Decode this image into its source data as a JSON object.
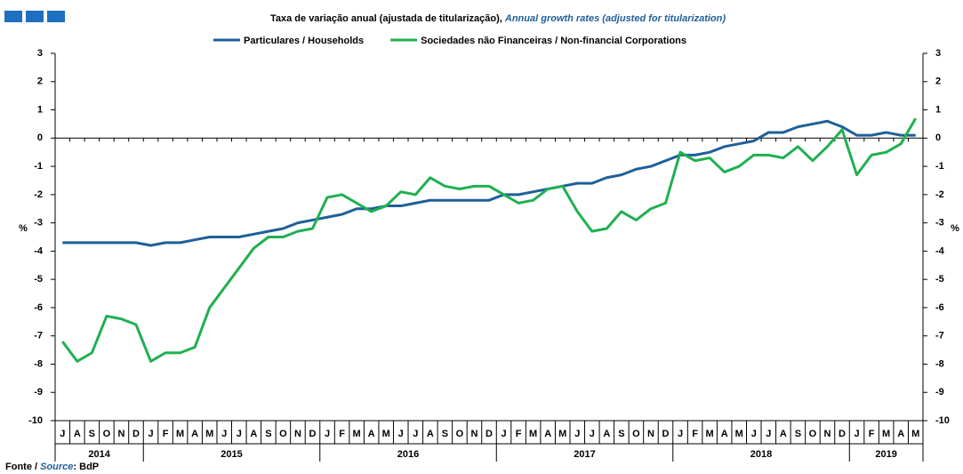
{
  "chart_data": {
    "type": "line",
    "title": "Taxa de variação anual (ajustada de titularização),",
    "subtitle": "Annual growth rates (adjusted for titularization)",
    "y_label": "%",
    "categories": [
      "J",
      "A",
      "S",
      "O",
      "N",
      "D",
      "J",
      "F",
      "M",
      "A",
      "M",
      "J",
      "J",
      "A",
      "S",
      "O",
      "N",
      "D",
      "J",
      "F",
      "M",
      "A",
      "M",
      "J",
      "J",
      "A",
      "S",
      "O",
      "N",
      "D",
      "J",
      "F",
      "M",
      "A",
      "M",
      "J",
      "J",
      "A",
      "S",
      "O",
      "N",
      "D",
      "J",
      "F",
      "M",
      "A",
      "M",
      "J",
      "J",
      "A",
      "S",
      "O",
      "N",
      "D",
      "J",
      "F",
      "M",
      "A",
      "M"
    ],
    "years": [
      "2014",
      "2015",
      "2016",
      "2017",
      "2018",
      "2019"
    ],
    "series": [
      {
        "name": "Particulares / Households",
        "color": "#1f5f99",
        "values": [
          -3.7,
          -3.7,
          -3.7,
          -3.7,
          -3.7,
          -3.7,
          -3.8,
          -3.7,
          -3.7,
          -3.6,
          -3.5,
          -3.5,
          -3.5,
          -3.4,
          -3.3,
          -3.2,
          -3.0,
          -2.9,
          -2.8,
          -2.7,
          -2.5,
          -2.5,
          -2.4,
          -2.4,
          -2.3,
          -2.2,
          -2.2,
          -2.2,
          -2.2,
          -2.2,
          -2.0,
          -2.0,
          -1.9,
          -1.8,
          -1.7,
          -1.6,
          -1.6,
          -1.4,
          -1.3,
          -1.1,
          -1.0,
          -0.8,
          -0.6,
          -0.6,
          -0.5,
          -0.3,
          -0.2,
          -0.1,
          0.2,
          0.2,
          0.4,
          0.5,
          0.6,
          0.4,
          0.1,
          0.1,
          0.2,
          0.1,
          0.1
        ]
      },
      {
        "name": "Sociedades não Financeiras / Non-financial Corporations",
        "color": "#1fb050",
        "values": [
          -7.2,
          -7.9,
          -7.6,
          -6.3,
          -6.4,
          -6.6,
          -7.9,
          -7.6,
          -7.6,
          -7.4,
          -6.0,
          -5.3,
          -4.6,
          -3.9,
          -3.5,
          -3.5,
          -3.3,
          -3.2,
          -2.1,
          -2.0,
          -2.3,
          -2.6,
          -2.4,
          -1.9,
          -2.0,
          -1.4,
          -1.7,
          -1.8,
          -1.7,
          -1.7,
          -2.0,
          -2.3,
          -2.2,
          -1.8,
          -1.7,
          -2.6,
          -3.3,
          -3.2,
          -2.6,
          -2.9,
          -2.5,
          -2.3,
          -0.5,
          -0.8,
          -0.7,
          -1.2,
          -1.0,
          -0.6,
          -0.6,
          -0.7,
          -0.3,
          -0.8,
          -0.3,
          0.3,
          -1.3,
          -0.6,
          -0.5,
          -0.2,
          0.7
        ]
      }
    ],
    "ylim": [
      -10,
      3
    ],
    "yticks": [
      -10,
      -9,
      -8,
      -7,
      -6,
      -5,
      -4,
      -3,
      -2,
      -1,
      0,
      1,
      2,
      3
    ],
    "source": {
      "pt": "Fonte /",
      "en": "Source",
      "text": ": BdP"
    }
  }
}
